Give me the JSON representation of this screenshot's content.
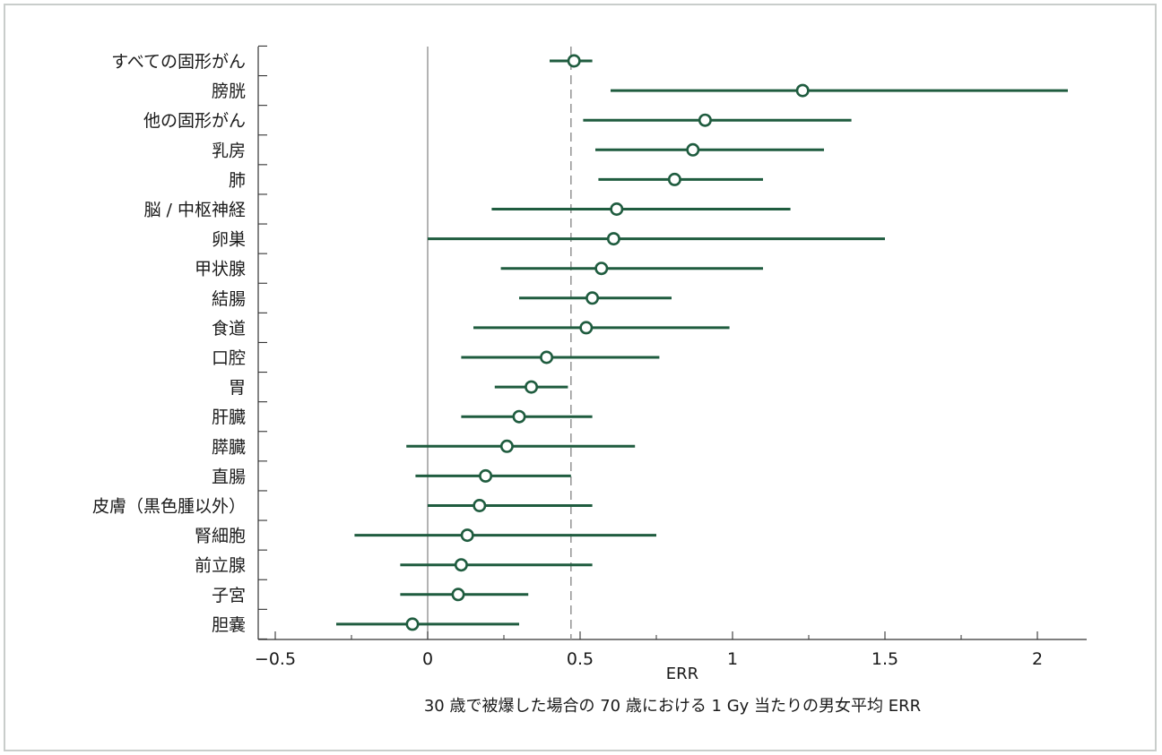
{
  "chart_data": {
    "type": "forest",
    "categories": [
      "すべての固形がん",
      "膀胱",
      "他の固形がん",
      "乳房",
      "肺",
      "脳 / 中枢神経",
      "卵巣",
      "甲状腺",
      "結腸",
      "食道",
      "口腔",
      "胃",
      "肝臓",
      "膵臓",
      "直腸",
      "皮膚（黒色腫以外）",
      "腎細胞",
      "前立腺",
      "子宮",
      "胆嚢"
    ],
    "points": [
      {
        "value": 0.48,
        "lower": 0.4,
        "upper": 0.54
      },
      {
        "value": 1.23,
        "lower": 0.6,
        "upper": 2.1
      },
      {
        "value": 0.91,
        "lower": 0.51,
        "upper": 1.39
      },
      {
        "value": 0.87,
        "lower": 0.55,
        "upper": 1.3
      },
      {
        "value": 0.81,
        "lower": 0.56,
        "upper": 1.1
      },
      {
        "value": 0.62,
        "lower": 0.21,
        "upper": 1.19
      },
      {
        "value": 0.61,
        "lower": 0.0,
        "upper": 1.5
      },
      {
        "value": 0.57,
        "lower": 0.24,
        "upper": 1.1
      },
      {
        "value": 0.54,
        "lower": 0.3,
        "upper": 0.8
      },
      {
        "value": 0.52,
        "lower": 0.15,
        "upper": 0.99
      },
      {
        "value": 0.39,
        "lower": 0.11,
        "upper": 0.76
      },
      {
        "value": 0.34,
        "lower": 0.22,
        "upper": 0.46
      },
      {
        "value": 0.3,
        "lower": 0.11,
        "upper": 0.54
      },
      {
        "value": 0.26,
        "lower": -0.07,
        "upper": 0.68
      },
      {
        "value": 0.19,
        "lower": -0.04,
        "upper": 0.47
      },
      {
        "value": 0.17,
        "lower": 0.0,
        "upper": 0.54
      },
      {
        "value": 0.13,
        "lower": -0.24,
        "upper": 0.75
      },
      {
        "value": 0.11,
        "lower": -0.09,
        "upper": 0.54
      },
      {
        "value": 0.1,
        "lower": -0.09,
        "upper": 0.33
      },
      {
        "value": -0.05,
        "lower": -0.3,
        "upper": 0.3
      }
    ],
    "reference_line": 0.47,
    "xlim": [
      -0.55,
      2.15
    ],
    "xticks": [
      -0.5,
      0,
      0.5,
      1,
      1.5,
      2
    ],
    "xtick_labels": [
      "−0.5",
      "0",
      "0.5",
      "1",
      "1.5",
      "2"
    ],
    "xlabel": "ERR",
    "caption": "30 歳で被爆した場合の 70 歳における 1 Gy 当たりの男女平均 ERR",
    "colors": {
      "marker": "#1f5c3f",
      "reference": "#9a9a9a",
      "zero_line": "#8a8a8a",
      "axis": "#333333",
      "frame": "#c9cdcb"
    },
    "grid": false,
    "legend": "none"
  }
}
